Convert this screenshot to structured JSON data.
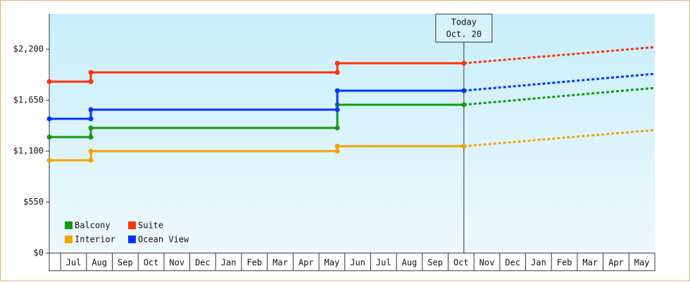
{
  "chart_data": {
    "type": "line",
    "xlim": [
      -0.44,
      23
    ],
    "ylim": [
      0,
      2580
    ],
    "xticks": [
      {
        "value": 0.5,
        "label": "Jul"
      },
      {
        "value": 1.5,
        "label": "Aug"
      },
      {
        "value": 2.5,
        "label": "Sep"
      },
      {
        "value": 3.5,
        "label": "Oct"
      },
      {
        "value": 4.5,
        "label": "Nov"
      },
      {
        "value": 5.5,
        "label": "Dec"
      },
      {
        "value": 6.5,
        "label": "Jan"
      },
      {
        "value": 7.5,
        "label": "Feb"
      },
      {
        "value": 8.5,
        "label": "Mar"
      },
      {
        "value": 9.5,
        "label": "Apr"
      },
      {
        "value": 10.5,
        "label": "May"
      },
      {
        "value": 11.5,
        "label": "Jun"
      },
      {
        "value": 12.5,
        "label": "Jul"
      },
      {
        "value": 13.5,
        "label": "Aug"
      },
      {
        "value": 14.5,
        "label": "Sep"
      },
      {
        "value": 15.5,
        "label": "Oct"
      },
      {
        "value": 16.5,
        "label": "Nov"
      },
      {
        "value": 17.5,
        "label": "Dec"
      },
      {
        "value": 18.5,
        "label": "Jan"
      },
      {
        "value": 19.5,
        "label": "Feb"
      },
      {
        "value": 20.5,
        "label": "Mar"
      },
      {
        "value": 21.5,
        "label": "Apr"
      },
      {
        "value": 22.5,
        "label": "May"
      }
    ],
    "yticks": [
      {
        "value": 0,
        "label": "$0"
      },
      {
        "value": 550,
        "label": "$550"
      },
      {
        "value": 1100,
        "label": "$1,100"
      },
      {
        "value": 1650,
        "label": "$1,650"
      },
      {
        "value": 2200,
        "label": "$2,200"
      }
    ],
    "annotation": {
      "x": 15.61,
      "label": [
        "Today",
        "Oct. 20"
      ]
    },
    "series": [
      {
        "name": "Balcony",
        "color": "#119911",
        "x": [
          -0.44,
          1.17,
          1.17,
          10.71,
          10.71,
          15.61
        ],
        "values": [
          1252,
          1252,
          1351,
          1351,
          1601,
          1601
        ],
        "forecast_x": [
          15.61,
          23
        ],
        "forecast_values": [
          1601,
          1783
        ]
      },
      {
        "name": "Suite",
        "color": "#ff3300",
        "x": [
          -0.44,
          1.17,
          1.17,
          10.71,
          10.71,
          15.61
        ],
        "values": [
          1851,
          1851,
          1950,
          1950,
          2049,
          2049
        ],
        "forecast_x": [
          15.61,
          23
        ],
        "forecast_values": [
          2049,
          2223
        ]
      },
      {
        "name": "Interior",
        "color": "#f5a300",
        "x": [
          -0.44,
          1.17,
          1.17,
          10.71,
          10.71,
          15.61
        ],
        "values": [
          1002,
          1002,
          1100,
          1100,
          1153,
          1153
        ],
        "forecast_x": [
          15.61,
          23
        ],
        "forecast_values": [
          1153,
          1328
        ]
      },
      {
        "name": "Ocean View",
        "color": "#0033ff",
        "x": [
          -0.44,
          1.17,
          1.17,
          10.71,
          10.71,
          15.61
        ],
        "values": [
          1449,
          1449,
          1548,
          1548,
          1753,
          1753
        ],
        "forecast_x": [
          15.61,
          23
        ],
        "forecast_values": [
          1753,
          1935
        ]
      }
    ]
  }
}
